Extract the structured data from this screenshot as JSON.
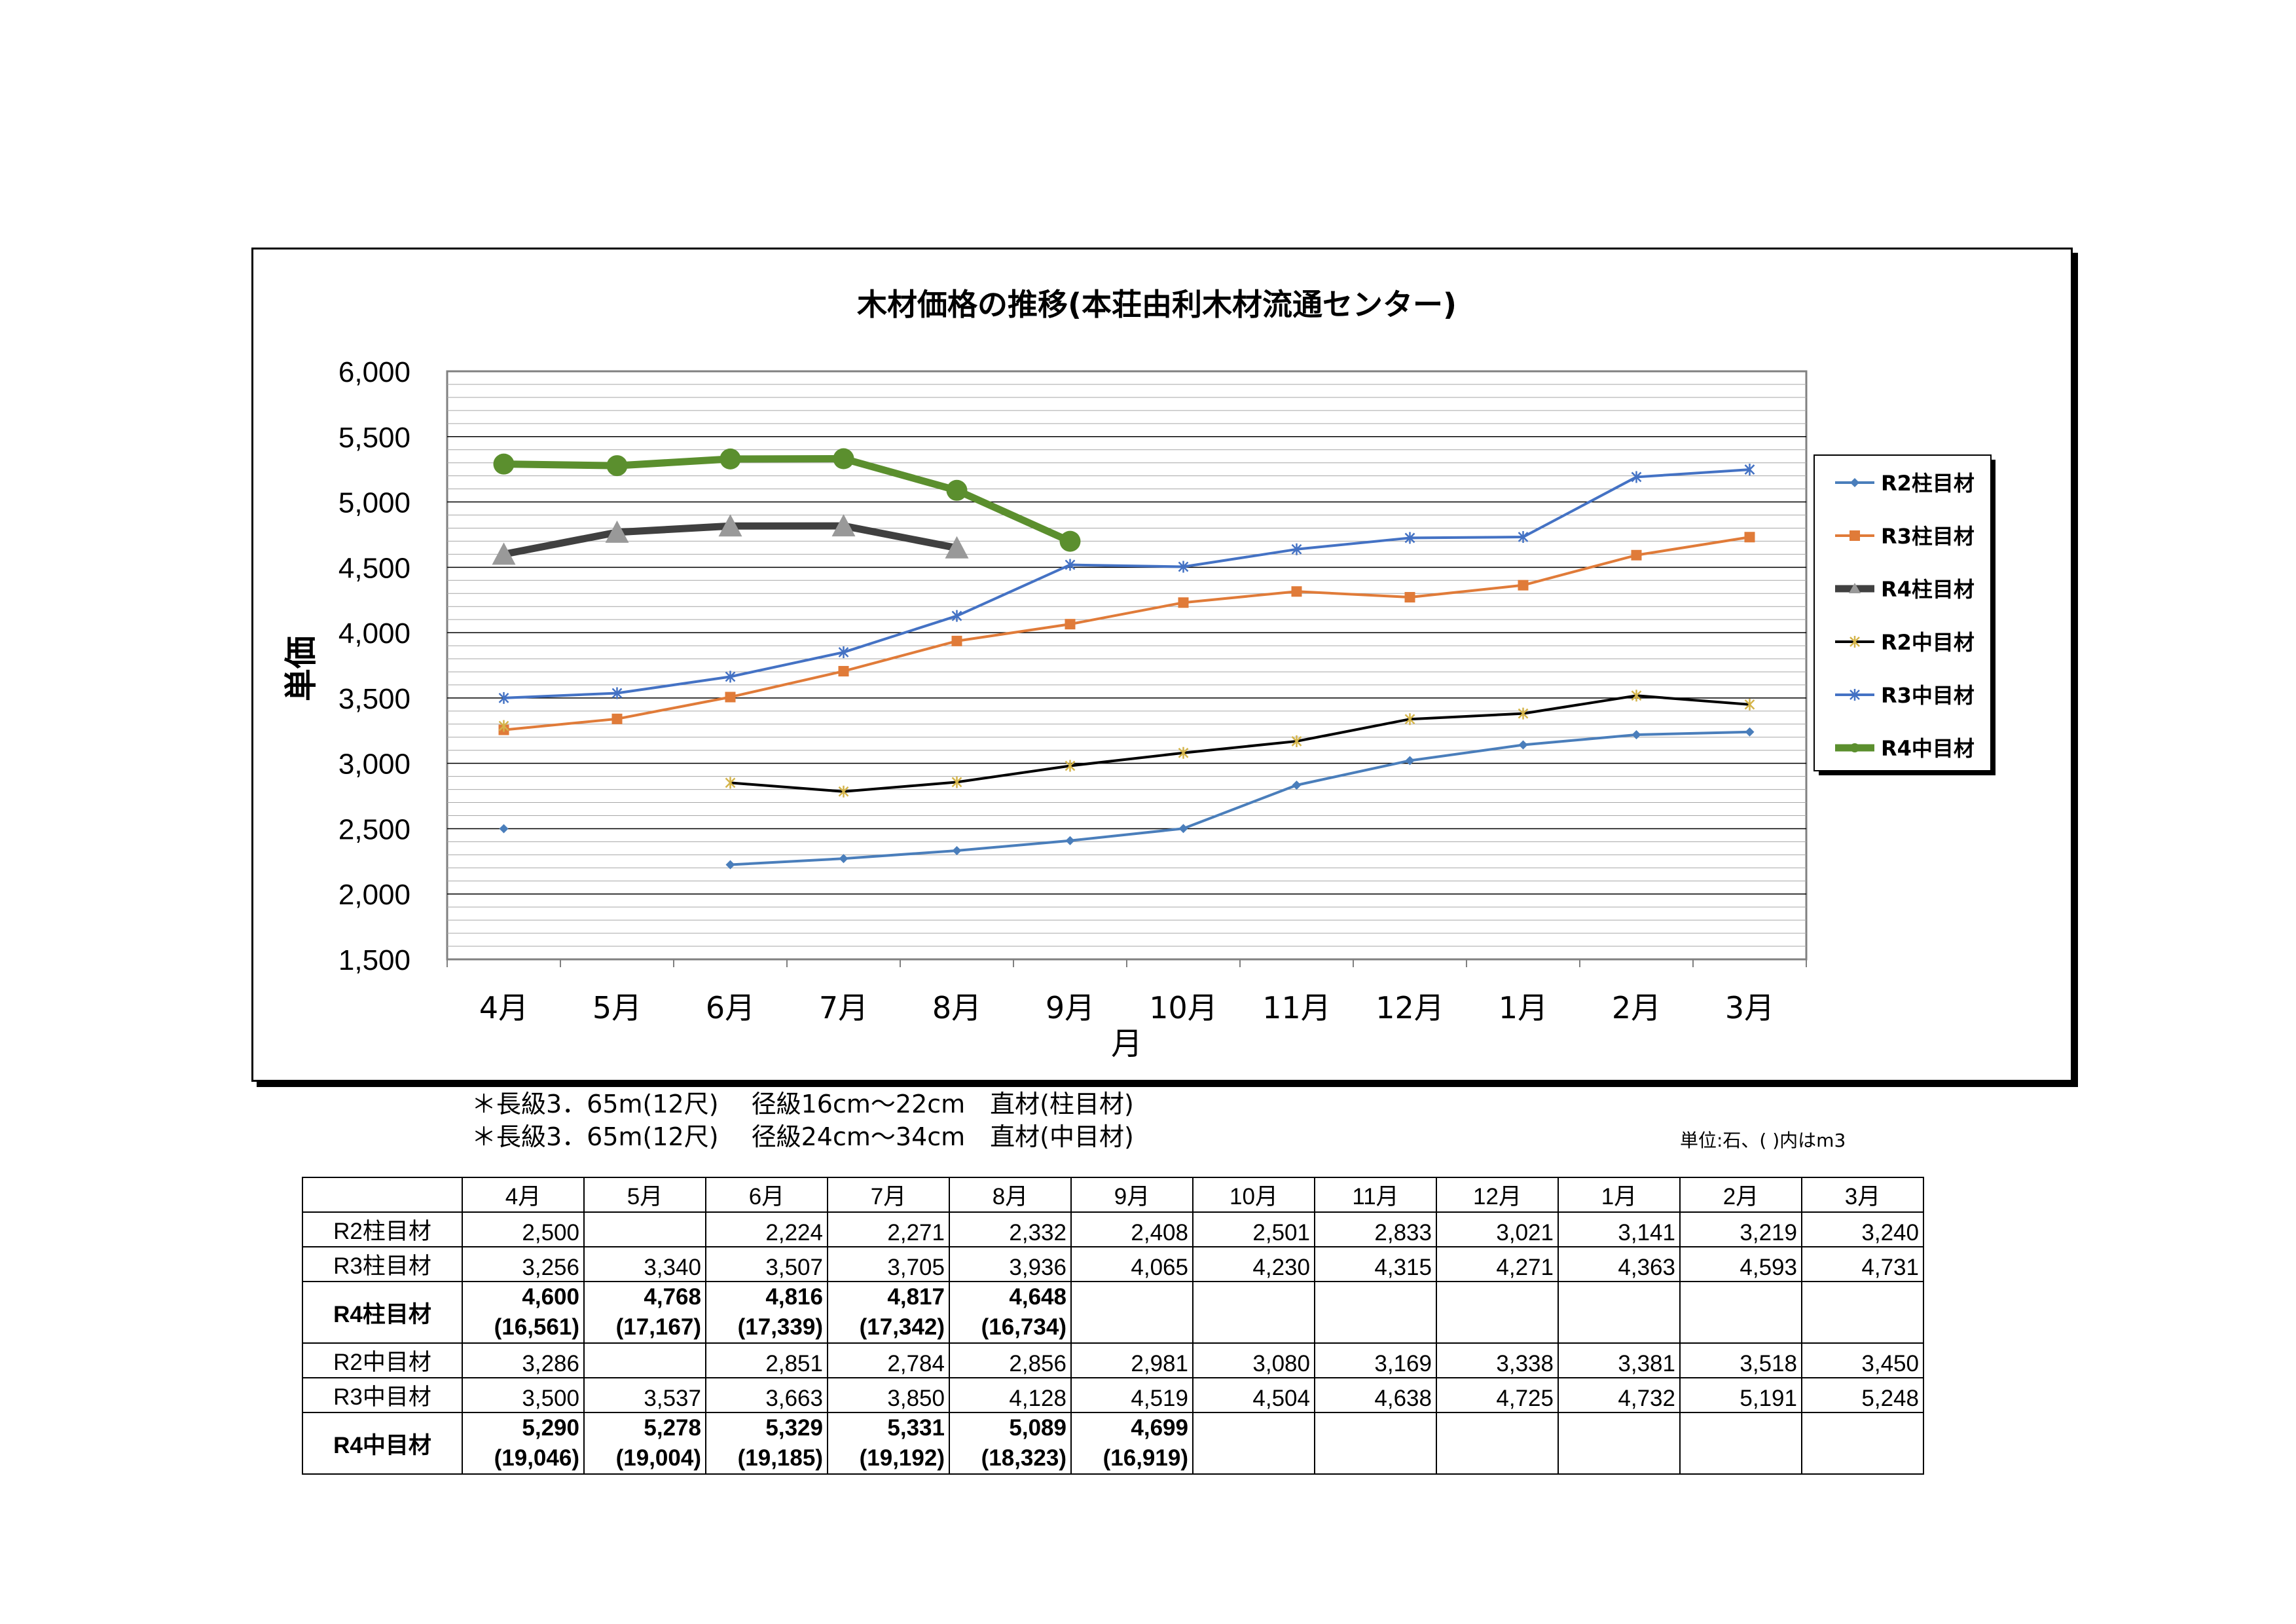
{
  "chart_data": {
    "type": "line",
    "title": "木材価格の推移(本荘由利木材流通センター)",
    "xlabel": "月",
    "ylabel": "単価",
    "categories": [
      "4月",
      "5月",
      "6月",
      "7月",
      "8月",
      "9月",
      "10月",
      "11月",
      "12月",
      "1月",
      "2月",
      "3月"
    ],
    "ylim": [
      1500,
      6000
    ],
    "yticks": [
      "6,000",
      "5,500",
      "5,000",
      "4,500",
      "4,000",
      "3,500",
      "3,000",
      "2,500",
      "2,000",
      "1,500"
    ],
    "grid": true,
    "legend_position": "right",
    "series": [
      {
        "name": "R2柱目材",
        "color": "#4a7ebb",
        "marker": "diamond",
        "bold": false,
        "values": [
          2500,
          null,
          2224,
          2271,
          2332,
          2408,
          2501,
          2833,
          3021,
          3141,
          3219,
          3240
        ]
      },
      {
        "name": "R3柱目材",
        "color": "#e07b39",
        "marker": "square",
        "bold": false,
        "values": [
          3256,
          3340,
          3507,
          3705,
          3936,
          4065,
          4230,
          4315,
          4271,
          4363,
          4593,
          4731
        ]
      },
      {
        "name": "R4柱目材",
        "color": "#404040",
        "marker": "triangle",
        "bold": true,
        "values": [
          4600,
          4768,
          4816,
          4817,
          4648,
          null,
          null,
          null,
          null,
          null,
          null,
          null
        ]
      },
      {
        "name": "R2中目材",
        "color": "#000000",
        "marker": "star",
        "bold": false,
        "values": [
          3286,
          null,
          2851,
          2784,
          2856,
          2981,
          3080,
          3169,
          3338,
          3381,
          3518,
          3450
        ]
      },
      {
        "name": "R3中目材",
        "color": "#4472c4",
        "marker": "x",
        "bold": false,
        "values": [
          3500,
          3537,
          3663,
          3850,
          4128,
          4519,
          4504,
          4638,
          4725,
          4732,
          5191,
          5248
        ]
      },
      {
        "name": "R4中目材",
        "color": "#5b8f2e",
        "marker": "circle",
        "bold": true,
        "values": [
          5290,
          5278,
          5329,
          5331,
          5089,
          4699,
          null,
          null,
          null,
          null,
          null,
          null
        ]
      }
    ]
  },
  "notes": {
    "line1": "＊長級3．65m(12尺)　 径級16cm～22cm　直材(柱目材)",
    "line2": "＊長級3．65m(12尺)　 径級24cm～34cm　直材(中目材)",
    "unit": "単位:石、( )内はm3"
  },
  "table": {
    "months": [
      "4月",
      "5月",
      "6月",
      "7月",
      "8月",
      "9月",
      "10月",
      "11月",
      "12月",
      "1月",
      "2月",
      "3月"
    ],
    "rows": [
      {
        "label": "R2柱目材",
        "bold": false,
        "cells": [
          "2,500",
          "",
          "2,224",
          "2,271",
          "2,332",
          "2,408",
          "2,501",
          "2,833",
          "3,021",
          "3,141",
          "3,219",
          "3,240"
        ]
      },
      {
        "label": "R3柱目材",
        "bold": false,
        "cells": [
          "3,256",
          "3,340",
          "3,507",
          "3,705",
          "3,936",
          "4,065",
          "4,230",
          "4,315",
          "4,271",
          "4,363",
          "4,593",
          "4,731"
        ]
      },
      {
        "label": "R4柱目材",
        "bold": true,
        "cells": [
          "4,600",
          "4,768",
          "4,816",
          "4,817",
          "4,648",
          "",
          "",
          "",
          "",
          "",
          "",
          ""
        ],
        "sub": [
          "(16,561)",
          "(17,167)",
          "(17,339)",
          "(17,342)",
          "(16,734)",
          "",
          "",
          "",
          "",
          "",
          "",
          ""
        ]
      },
      {
        "label": "R2中目材",
        "bold": false,
        "cells": [
          "3,286",
          "",
          "2,851",
          "2,784",
          "2,856",
          "2,981",
          "3,080",
          "3,169",
          "3,338",
          "3,381",
          "3,518",
          "3,450"
        ]
      },
      {
        "label": "R3中目材",
        "bold": false,
        "cells": [
          "3,500",
          "3,537",
          "3,663",
          "3,850",
          "4,128",
          "4,519",
          "4,504",
          "4,638",
          "4,725",
          "4,732",
          "5,191",
          "5,248"
        ]
      },
      {
        "label": "R4中目材",
        "bold": true,
        "cells": [
          "5,290",
          "5,278",
          "5,329",
          "5,331",
          "5,089",
          "4,699",
          "",
          "",
          "",
          "",
          "",
          ""
        ],
        "sub": [
          "(19,046)",
          "(19,004)",
          "(19,185)",
          "(19,192)",
          "(18,323)",
          "(16,919)",
          "",
          "",
          "",
          "",
          "",
          ""
        ]
      }
    ]
  }
}
